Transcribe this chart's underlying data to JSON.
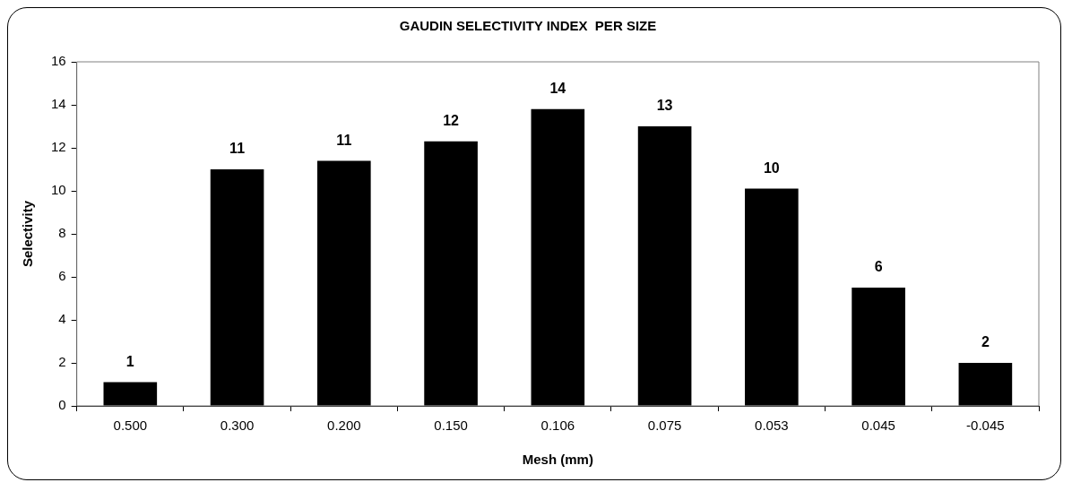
{
  "chart_data": {
    "type": "bar",
    "title": "GAUDIN SELECTIVITY INDEX  PER SIZE",
    "xlabel": "Mesh (mm)",
    "ylabel": "Selectivity",
    "categories": [
      "0.500",
      "0.300",
      "0.200",
      "0.150",
      "0.106",
      "0.075",
      "0.053",
      "0.045",
      "-0.045"
    ],
    "values": [
      1.1,
      11.0,
      11.4,
      12.3,
      13.8,
      13.0,
      10.1,
      5.5,
      2.0
    ],
    "value_labels": [
      "1",
      "11",
      "11",
      "12",
      "14",
      "13",
      "10",
      "6",
      "2"
    ],
    "color": "#000000",
    "ylim": [
      0,
      16
    ],
    "yticks": [
      0,
      2,
      4,
      6,
      8,
      10,
      12,
      14,
      16
    ],
    "grid": false,
    "legend": false
  }
}
